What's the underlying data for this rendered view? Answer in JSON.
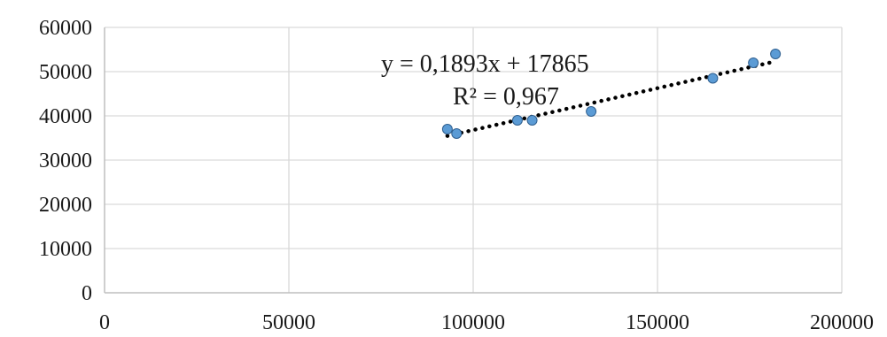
{
  "chart_data": {
    "type": "scatter",
    "title": "",
    "xlabel": "",
    "ylabel": "",
    "xlim": [
      0,
      200000
    ],
    "ylim": [
      0,
      60000
    ],
    "x_ticks": [
      0,
      50000,
      100000,
      150000,
      200000
    ],
    "y_ticks": [
      0,
      10000,
      20000,
      30000,
      40000,
      50000,
      60000
    ],
    "x_tick_labels": [
      "0",
      "50000",
      "100000",
      "150000",
      "200000"
    ],
    "y_tick_labels": [
      "0",
      "10000",
      "20000",
      "30000",
      "40000",
      "50000",
      "60000"
    ],
    "grid": true,
    "series": [
      {
        "x": [
          93000,
          95500,
          112000,
          116000,
          132000,
          165000,
          176000,
          182000
        ],
        "y": [
          37000,
          36000,
          39000,
          39000,
          41000,
          48500,
          52000,
          54000
        ],
        "color": "#5b9bd5"
      }
    ],
    "trendline": {
      "type": "linear",
      "slope": 0.1893,
      "intercept": 17865,
      "x_range": [
        93000,
        182000
      ],
      "style": "dotted",
      "color": "#000000"
    },
    "annotations": {
      "equation": "y = 0,1893x + 17865",
      "r_squared": "R² = 0,967"
    }
  }
}
